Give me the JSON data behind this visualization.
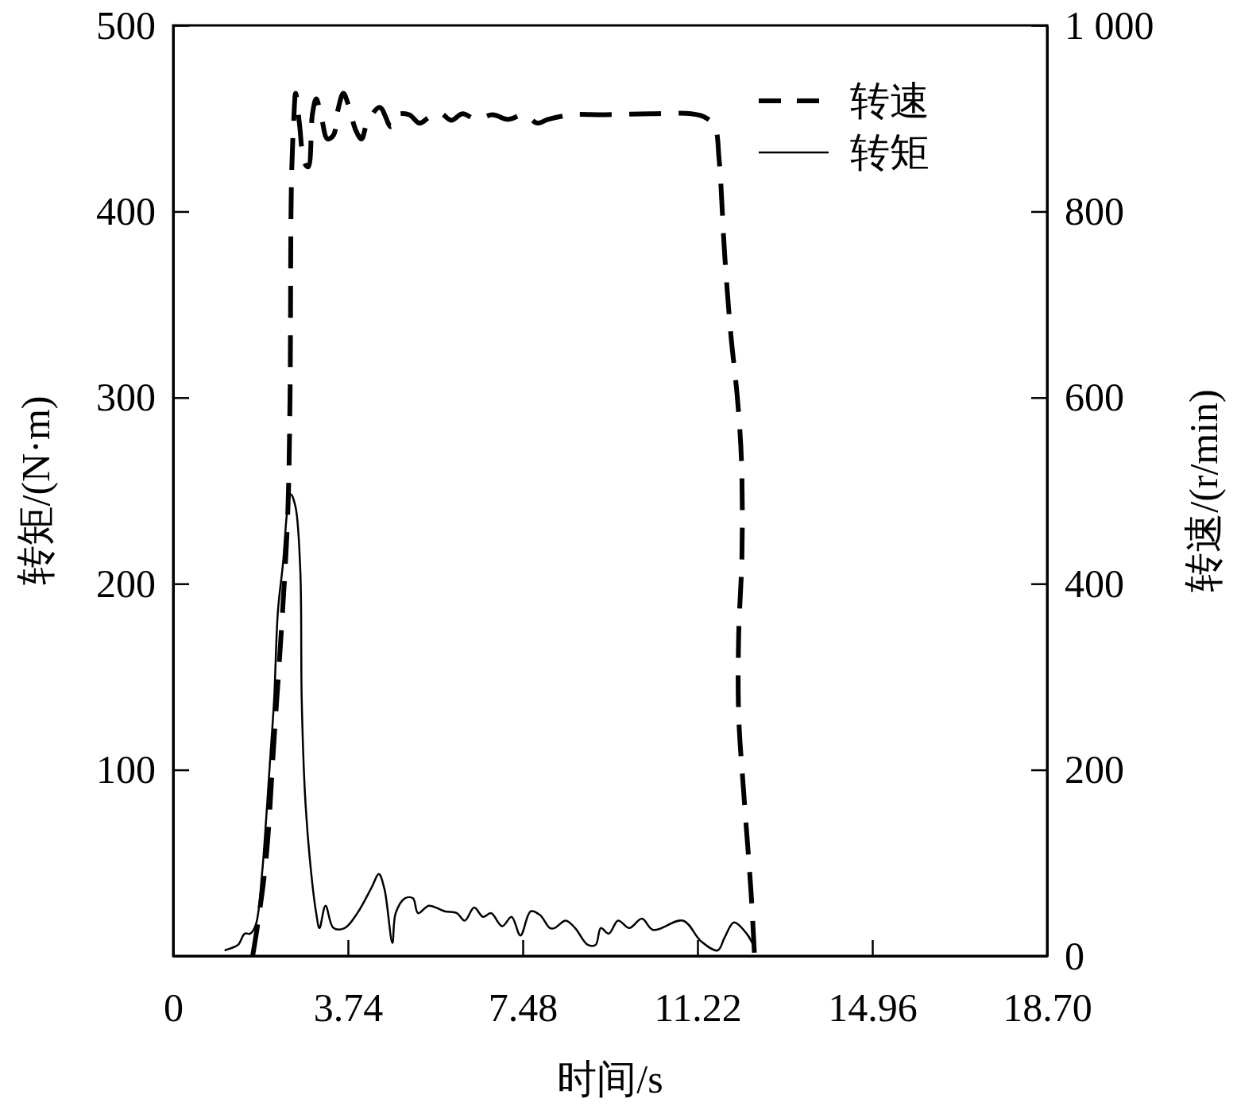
{
  "chart_data": {
    "type": "line",
    "xlabel": "时间/s",
    "ylabel": "转矩/(N·m)",
    "y2label": "转速/(r/min)",
    "xlim": [
      0,
      18.7
    ],
    "xticks": [
      {
        "value": 0,
        "label": "0"
      },
      {
        "value": 3.74,
        "label": "3.74"
      },
      {
        "value": 7.48,
        "label": "7.48"
      },
      {
        "value": 11.22,
        "label": "11.22"
      },
      {
        "value": 14.96,
        "label": "14.96"
      },
      {
        "value": 18.7,
        "label": "18.70"
      }
    ],
    "ylim": [
      0,
      500
    ],
    "yticks": [
      {
        "value": 0,
        "label": null
      },
      100,
      200,
      300,
      400,
      500
    ],
    "y2lim": [
      0,
      1000
    ],
    "y2ticks": [
      0,
      200,
      400,
      600,
      800,
      {
        "value": 1000,
        "label": "1 000"
      }
    ],
    "grid": false,
    "legend": "top right",
    "marker": "none",
    "series": [
      {
        "name": "转速",
        "color": "#000000",
        "axis": "y2",
        "line_style": "dashed",
        "x": [
          1.7,
          1.82,
          1.99,
          2.16,
          2.33,
          2.45,
          2.5,
          2.53,
          2.58,
          2.62,
          2.7,
          2.81,
          2.89,
          2.98,
          3.06,
          3.18,
          3.3,
          3.43,
          3.52,
          3.64,
          3.74,
          3.91,
          4.03,
          4.15,
          4.42,
          4.66,
          4.79,
          5.05,
          5.27,
          5.47,
          5.71,
          5.95,
          6.19,
          6.49,
          6.83,
          7.17,
          7.51,
          7.79,
          8.02,
          8.53,
          9.21,
          10.23,
          11.08,
          11.39,
          11.59,
          11.68,
          11.8,
          11.93,
          12.07,
          12.16,
          12.17,
          12.1,
          12.1,
          12.21,
          12.36,
          12.44
        ],
        "values": [
          0,
          38,
          106,
          234,
          362,
          473,
          601,
          831,
          899,
          927,
          895,
          852,
          848,
          905,
          921,
          899,
          878,
          882,
          908,
          927,
          916,
          887,
          878,
          895,
          912,
          891,
          904,
          904,
          895,
          901,
          906,
          898,
          905,
          899,
          904,
          899,
          904,
          895,
          899,
          904,
          904,
          905,
          905,
          901,
          891,
          857,
          754,
          669,
          601,
          532,
          430,
          345,
          259,
          174,
          72,
          0
        ]
      },
      {
        "name": "转矩",
        "color": "#000000",
        "axis": "y",
        "line_style": "solid",
        "x": [
          1.1,
          1.22,
          1.39,
          1.53,
          1.65,
          1.77,
          1.9,
          1.99,
          2.07,
          2.16,
          2.24,
          2.35,
          2.45,
          2.52,
          2.62,
          2.72,
          2.75,
          2.82,
          2.92,
          3.06,
          3.13,
          3.26,
          3.43,
          3.67,
          3.94,
          4.25,
          4.4,
          4.52,
          4.69,
          4.76,
          4.96,
          5.13,
          5.24,
          5.47,
          5.81,
          6.07,
          6.24,
          6.44,
          6.63,
          6.8,
          7.04,
          7.24,
          7.43,
          7.65,
          7.85,
          8.06,
          8.16,
          8.4,
          8.6,
          8.87,
          9.04,
          9.15,
          9.32,
          9.52,
          9.76,
          10.03,
          10.27,
          10.91,
          11.29,
          11.65,
          11.8,
          12.0,
          12.27,
          12.41
        ],
        "values": [
          3,
          4,
          6,
          12,
          12,
          17,
          44,
          74,
          104,
          138,
          185,
          211,
          241,
          248,
          241,
          207,
          138,
          87,
          53,
          23,
          15,
          27,
          15,
          15,
          23,
          37,
          44,
          36,
          7,
          23,
          31,
          31,
          23,
          27,
          24,
          23,
          19,
          26,
          21,
          23,
          16,
          21,
          11,
          24,
          22,
          15,
          15,
          19,
          15,
          6,
          6,
          15,
          12,
          19,
          15,
          20,
          14,
          19,
          8,
          3,
          10,
          18,
          12,
          6
        ]
      }
    ]
  }
}
